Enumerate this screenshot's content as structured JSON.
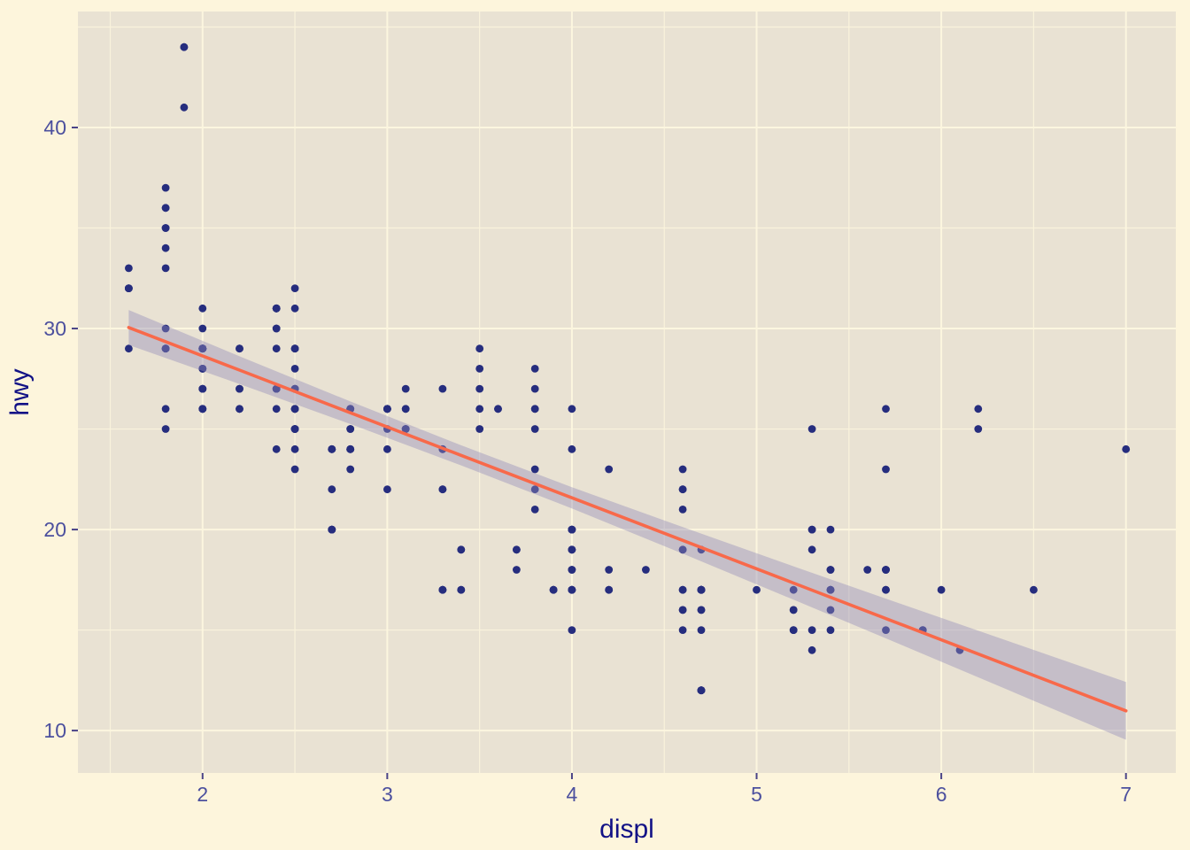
{
  "figure": {
    "background_color": "#FDF5DC",
    "panel_color": "#E9E2D3",
    "grid_major_color": "#FCF6DF",
    "grid_minor_color": "#FAF3DC",
    "point_color": "#262D7E",
    "smooth_line_color": "#F8694A",
    "ribbon_color": "rgba(147,141,187,0.42)",
    "tick_label_color": "#4C509E",
    "axis_title_color": "#121286",
    "tick_mark_color": "#4A4488"
  },
  "chart_data": {
    "type": "scatter",
    "title": "",
    "xlabel": "displ",
    "ylabel": "hwy",
    "xlim": [
      1.325,
      7.27
    ],
    "ylim": [
      7.89,
      45.77
    ],
    "x_ticks": [
      2,
      3,
      4,
      5,
      6,
      7
    ],
    "y_ticks": [
      10,
      20,
      30,
      40
    ],
    "x_minor_ticks": [
      1.5,
      2.5,
      3.5,
      4.5,
      5.5,
      6.5
    ],
    "y_minor_ticks": [
      15,
      25,
      35,
      45
    ],
    "grid": true,
    "legend_position": "none",
    "points": [
      [
        1.8,
        29
      ],
      [
        1.8,
        29
      ],
      [
        2,
        31
      ],
      [
        2,
        30
      ],
      [
        2.8,
        26
      ],
      [
        2.8,
        26
      ],
      [
        3.1,
        27
      ],
      [
        1.8,
        26
      ],
      [
        1.8,
        25
      ],
      [
        2,
        28
      ],
      [
        2,
        27
      ],
      [
        2.8,
        25
      ],
      [
        2.8,
        25
      ],
      [
        3.1,
        25
      ],
      [
        3.1,
        25
      ],
      [
        2.8,
        24
      ],
      [
        3.1,
        25
      ],
      [
        4.2,
        23
      ],
      [
        5.3,
        20
      ],
      [
        5.3,
        15
      ],
      [
        5.3,
        20
      ],
      [
        5.7,
        17
      ],
      [
        6,
        17
      ],
      [
        5.7,
        26
      ],
      [
        5.7,
        23
      ],
      [
        6.2,
        26
      ],
      [
        6.2,
        25
      ],
      [
        7,
        24
      ],
      [
        5.3,
        19
      ],
      [
        5.3,
        14
      ],
      [
        5.7,
        15
      ],
      [
        6.5,
        17
      ],
      [
        2.4,
        27
      ],
      [
        2.4,
        30
      ],
      [
        3.1,
        26
      ],
      [
        3.5,
        29
      ],
      [
        3.6,
        26
      ],
      [
        2.4,
        24
      ],
      [
        3,
        24
      ],
      [
        3.3,
        22
      ],
      [
        3.3,
        22
      ],
      [
        3.3,
        24
      ],
      [
        3.3,
        24
      ],
      [
        3.3,
        17
      ],
      [
        3.8,
        22
      ],
      [
        3.8,
        21
      ],
      [
        3.8,
        23
      ],
      [
        4,
        18
      ],
      [
        3.7,
        19
      ],
      [
        3.7,
        18
      ],
      [
        3.9,
        17
      ],
      [
        3.9,
        17
      ],
      [
        4.7,
        17
      ],
      [
        4.7,
        17
      ],
      [
        4.7,
        12
      ],
      [
        5.2,
        17
      ],
      [
        5.2,
        15
      ],
      [
        3.9,
        17
      ],
      [
        4.7,
        17
      ],
      [
        4.7,
        12
      ],
      [
        4.7,
        17
      ],
      [
        5.2,
        16
      ],
      [
        5.7,
        18
      ],
      [
        5.9,
        15
      ],
      [
        4.7,
        16
      ],
      [
        4.7,
        12
      ],
      [
        4.7,
        17
      ],
      [
        4.7,
        17
      ],
      [
        4.7,
        16
      ],
      [
        4.7,
        12
      ],
      [
        5.2,
        15
      ],
      [
        5.2,
        16
      ],
      [
        5.7,
        17
      ],
      [
        5.9,
        15
      ],
      [
        4.6,
        17
      ],
      [
        5.4,
        17
      ],
      [
        5.4,
        18
      ],
      [
        4,
        17
      ],
      [
        4,
        19
      ],
      [
        4,
        17
      ],
      [
        4,
        19
      ],
      [
        4,
        17
      ],
      [
        4.6,
        19
      ],
      [
        4.2,
        17
      ],
      [
        4.2,
        17
      ],
      [
        4.6,
        16
      ],
      [
        4.6,
        16
      ],
      [
        4.6,
        17
      ],
      [
        5.4,
        15
      ],
      [
        5.4,
        17
      ],
      [
        3.8,
        26
      ],
      [
        3.8,
        25
      ],
      [
        4,
        26
      ],
      [
        4,
        24
      ],
      [
        4.6,
        21
      ],
      [
        4.6,
        22
      ],
      [
        4.6,
        23
      ],
      [
        4.6,
        22
      ],
      [
        5.4,
        20
      ],
      [
        1.6,
        33
      ],
      [
        1.6,
        32
      ],
      [
        1.6,
        32
      ],
      [
        1.6,
        29
      ],
      [
        1.6,
        32
      ],
      [
        1.8,
        34
      ],
      [
        1.8,
        36
      ],
      [
        1.8,
        36
      ],
      [
        2,
        29
      ],
      [
        2.4,
        26
      ],
      [
        2.4,
        27
      ],
      [
        2.4,
        30
      ],
      [
        2.4,
        31
      ],
      [
        2.5,
        26
      ],
      [
        2.5,
        26
      ],
      [
        2,
        26
      ],
      [
        2,
        29
      ],
      [
        2,
        28
      ],
      [
        2,
        27
      ],
      [
        2,
        27
      ],
      [
        2.7,
        24
      ],
      [
        2.7,
        24
      ],
      [
        2.7,
        24
      ],
      [
        3,
        22
      ],
      [
        3.7,
        19
      ],
      [
        4,
        20
      ],
      [
        4.7,
        17
      ],
      [
        4.7,
        12
      ],
      [
        4.7,
        19
      ],
      [
        5.7,
        18
      ],
      [
        6.1,
        14
      ],
      [
        4,
        15
      ],
      [
        4.2,
        18
      ],
      [
        4.4,
        18
      ],
      [
        4.6,
        15
      ],
      [
        5.4,
        17
      ],
      [
        5.4,
        16
      ],
      [
        5.4,
        18
      ],
      [
        4,
        17
      ],
      [
        4,
        19
      ],
      [
        4.6,
        19
      ],
      [
        5,
        17
      ],
      [
        2.4,
        29
      ],
      [
        2.4,
        27
      ],
      [
        2.5,
        31
      ],
      [
        2.5,
        32
      ],
      [
        3.5,
        27
      ],
      [
        3.5,
        26
      ],
      [
        3,
        26
      ],
      [
        3,
        25
      ],
      [
        3.5,
        25
      ],
      [
        3.3,
        17
      ],
      [
        3.3,
        17
      ],
      [
        4,
        20
      ],
      [
        5.6,
        18
      ],
      [
        3.1,
        26
      ],
      [
        3.8,
        26
      ],
      [
        3.8,
        27
      ],
      [
        3.8,
        28
      ],
      [
        5.3,
        25
      ],
      [
        2.5,
        25
      ],
      [
        2.5,
        24
      ],
      [
        2.5,
        27
      ],
      [
        2.5,
        25
      ],
      [
        2.5,
        26
      ],
      [
        2.5,
        23
      ],
      [
        2.2,
        26
      ],
      [
        2.2,
        26
      ],
      [
        2.5,
        26
      ],
      [
        2.5,
        26
      ],
      [
        2.5,
        25
      ],
      [
        2.5,
        27
      ],
      [
        2.5,
        25
      ],
      [
        2.5,
        27
      ],
      [
        2.7,
        20
      ],
      [
        2.7,
        20
      ],
      [
        3.4,
        19
      ],
      [
        3.4,
        17
      ],
      [
        4,
        20
      ],
      [
        4.7,
        17
      ],
      [
        2.2,
        29
      ],
      [
        2.2,
        27
      ],
      [
        2.4,
        31
      ],
      [
        2.4,
        31
      ],
      [
        3,
        26
      ],
      [
        3,
        26
      ],
      [
        3.5,
        28
      ],
      [
        2.2,
        27
      ],
      [
        2.2,
        29
      ],
      [
        2.4,
        31
      ],
      [
        2.4,
        31
      ],
      [
        3,
        26
      ],
      [
        3,
        26
      ],
      [
        3.3,
        27
      ],
      [
        1.8,
        30
      ],
      [
        1.8,
        33
      ],
      [
        1.8,
        35
      ],
      [
        1.8,
        37
      ],
      [
        1.8,
        35
      ],
      [
        4.7,
        15
      ],
      [
        5.7,
        18
      ],
      [
        2.7,
        20
      ],
      [
        2.7,
        20
      ],
      [
        2.7,
        22
      ],
      [
        3.4,
        17
      ],
      [
        3.4,
        19
      ],
      [
        4,
        18
      ],
      [
        4,
        20
      ],
      [
        2,
        29
      ],
      [
        2,
        26
      ],
      [
        2,
        29
      ],
      [
        2,
        29
      ],
      [
        2.8,
        24
      ],
      [
        1.9,
        44
      ],
      [
        2,
        29
      ],
      [
        2,
        26
      ],
      [
        2,
        29
      ],
      [
        2,
        29
      ],
      [
        2.5,
        29
      ],
      [
        2.5,
        29
      ],
      [
        2.8,
        23
      ],
      [
        2.8,
        24
      ],
      [
        1.9,
        44
      ],
      [
        1.9,
        41
      ],
      [
        2,
        29
      ],
      [
        2,
        26
      ],
      [
        2.5,
        28
      ],
      [
        2.5,
        29
      ],
      [
        1.8,
        29
      ],
      [
        1.8,
        29
      ],
      [
        2,
        28
      ],
      [
        2,
        29
      ],
      [
        2.8,
        26
      ],
      [
        2.8,
        26
      ],
      [
        3.6,
        26
      ]
    ],
    "smooth": {
      "method": "linear",
      "x": [
        1.6,
        2.2,
        2.8,
        3.4,
        4.0,
        4.6,
        5.2,
        5.8,
        6.4,
        7.0
      ],
      "fit": [
        30.05,
        27.93,
        25.81,
        23.69,
        21.58,
        19.46,
        17.34,
        15.22,
        13.1,
        10.98
      ],
      "lower": [
        29.18,
        27.24,
        25.25,
        23.19,
        21.05,
        18.8,
        16.51,
        14.2,
        11.87,
        9.54
      ],
      "upper": [
        30.92,
        28.62,
        26.37,
        24.19,
        22.11,
        20.12,
        18.17,
        16.24,
        14.33,
        12.42
      ]
    }
  }
}
